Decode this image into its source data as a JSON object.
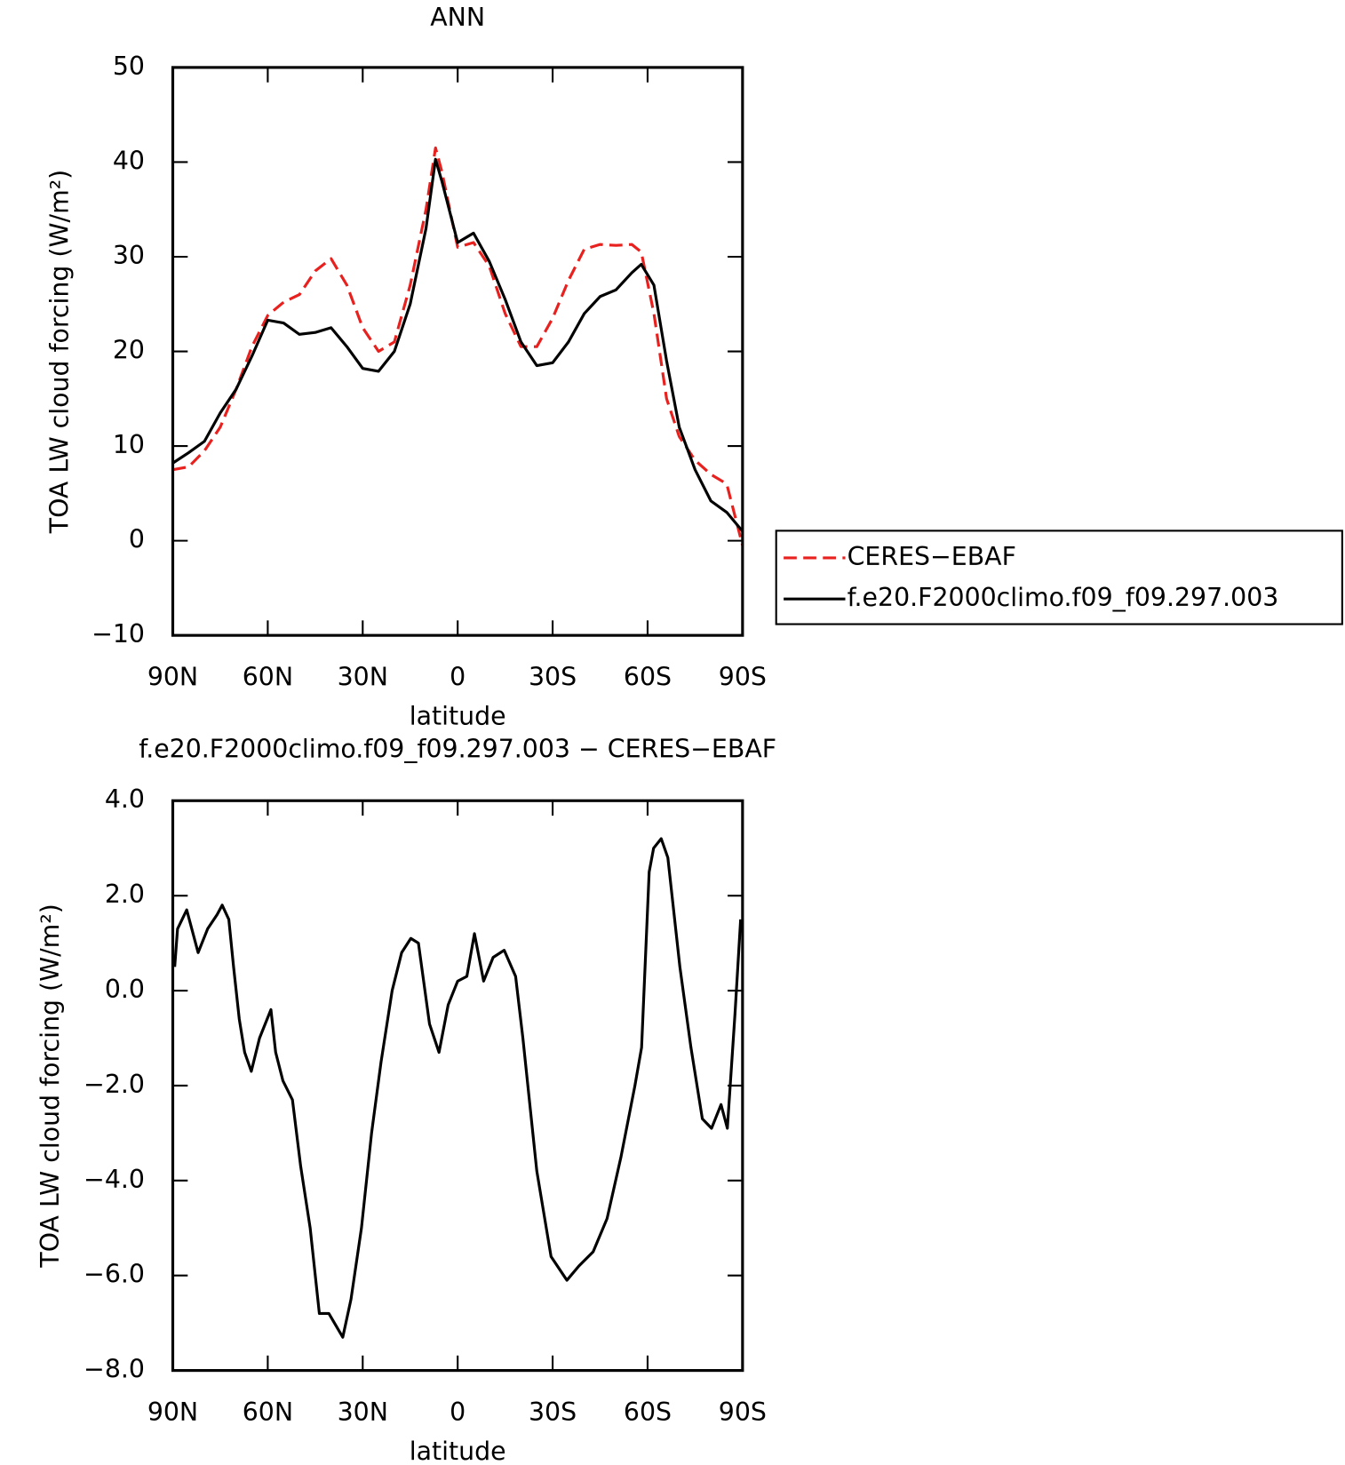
{
  "chart_data": [
    {
      "type": "line",
      "title": "ANN",
      "x_label": "latitude",
      "y_label": "TOA LW cloud forcing (W/m²)",
      "x": [
        90,
        85,
        80,
        75,
        70,
        65,
        60,
        55,
        50,
        45,
        40,
        35,
        30,
        25,
        20,
        15,
        10,
        7,
        5,
        0,
        -5,
        -10,
        -15,
        -20,
        -25,
        -30,
        -35,
        -40,
        -45,
        -50,
        -55,
        -58,
        -62,
        -66,
        -70,
        -75,
        -80,
        -85,
        -90
      ],
      "series": [
        {
          "name": "CERES−EBAF",
          "color": "#e8201e",
          "dash": true,
          "values": [
            7.5,
            7.8,
            9.5,
            12,
            16,
            20.5,
            23.8,
            25.2,
            26,
            28.5,
            29.8,
            27,
            22.5,
            20,
            21,
            27,
            35,
            41.5,
            39,
            31,
            31.5,
            29,
            24,
            20.5,
            20.5,
            23.5,
            27.5,
            30.8,
            31.3,
            31.2,
            31.3,
            30.5,
            24,
            15,
            11,
            8.5,
            7,
            6,
            -0.5
          ]
        },
        {
          "name": "f.e20.F2000climo.f09_f09.297.003",
          "color": "#000000",
          "dash": false,
          "values": [
            8.2,
            9.3,
            10.5,
            13.5,
            16,
            19.5,
            23.3,
            23,
            21.8,
            22,
            22.5,
            20.5,
            18.2,
            17.9,
            20,
            25,
            33,
            40.3,
            38,
            31.5,
            32.5,
            29.5,
            25.5,
            21,
            18.5,
            18.8,
            21,
            24,
            25.8,
            26.5,
            28.3,
            29.2,
            27,
            19,
            12,
            7.5,
            4.2,
            3,
            1
          ]
        }
      ],
      "xlim": [
        90,
        -90
      ],
      "xticks": [
        {
          "value": 90,
          "label": "90N"
        },
        {
          "value": 60,
          "label": "60N"
        },
        {
          "value": 30,
          "label": "30N"
        },
        0,
        {
          "value": -30,
          "label": "30S"
        },
        {
          "value": -60,
          "label": "60S"
        },
        {
          "value": -90,
          "label": "90S"
        }
      ],
      "ylim": [
        -10,
        50
      ],
      "yticks": [
        {
          "value": -10,
          "label": "−10"
        },
        0,
        10,
        20,
        30,
        40,
        50
      ],
      "legend": "right"
    },
    {
      "type": "line",
      "title": "f.e20.F2000climo.f09_f09.297.003 − CERES−EBAF",
      "x_label": "latitude",
      "y_label": "TOA LW cloud forcing (W/m²)",
      "x": [
        89.4,
        88.5,
        85.6,
        82,
        79,
        76,
        74.4,
        72.3,
        70.8,
        69,
        67.3,
        65.2,
        62.6,
        59,
        57.5,
        55.2,
        52.2,
        49.6,
        46.6,
        43.7,
        40.7,
        36.3,
        33.7,
        30.4,
        27.2,
        24.2,
        20.7,
        17.7,
        14.8,
        12.4,
        8.9,
        5.9,
        3,
        0,
        -2.9,
        -5.3,
        -8.2,
        -11.2,
        -14.7,
        -18.3,
        -20.6,
        -25,
        -29.5,
        -34.5,
        -38.3,
        -42.8,
        -47.2,
        -51.6,
        -56,
        -58.1,
        -60.5,
        -61.9,
        -64.3,
        -66.4,
        -70.2,
        -73.7,
        -77.3,
        -80.2,
        -83.2,
        -85.2,
        -87.6,
        -89.4
      ],
      "series": [
        {
          "color": "#000000",
          "dash": false,
          "values": [
            0.5,
            1.3,
            1.7,
            0.8,
            1.3,
            1.6,
            1.8,
            1.5,
            0.5,
            -0.6,
            -1.3,
            -1.7,
            -1,
            -0.4,
            -1.3,
            -1.9,
            -2.3,
            -3.7,
            -5,
            -6.8,
            -6.8,
            -7.3,
            -6.5,
            -5,
            -3,
            -1.5,
            0,
            0.8,
            1.1,
            1,
            -0.7,
            -1.3,
            -0.3,
            0.2,
            0.3,
            1.2,
            0.2,
            0.7,
            0.85,
            0.3,
            -1,
            -3.8,
            -5.6,
            -6.1,
            -5.8,
            -5.5,
            -4.8,
            -3.5,
            -2,
            -1.2,
            2.5,
            3,
            3.2,
            2.8,
            0.5,
            -1.2,
            -2.7,
            -2.9,
            -2.4,
            -2.9,
            -0.5,
            1.5
          ]
        }
      ],
      "xlim": [
        90,
        -90
      ],
      "xticks": [
        {
          "value": 90,
          "label": "90N"
        },
        {
          "value": 60,
          "label": "60N"
        },
        {
          "value": 30,
          "label": "30N"
        },
        0,
        {
          "value": -30,
          "label": "30S"
        },
        {
          "value": -60,
          "label": "60S"
        },
        {
          "value": -90,
          "label": "90S"
        }
      ],
      "ylim": [
        -8,
        4
      ],
      "yticks": [
        {
          "value": -8,
          "label": "−8.0"
        },
        {
          "value": -6,
          "label": "−6.0"
        },
        {
          "value": -4,
          "label": "−4.0"
        },
        {
          "value": -2,
          "label": "−2.0"
        },
        {
          "value": 0,
          "label": "0.0"
        },
        {
          "value": 2,
          "label": "2.0"
        },
        {
          "value": 4,
          "label": "4.0"
        }
      ]
    }
  ]
}
